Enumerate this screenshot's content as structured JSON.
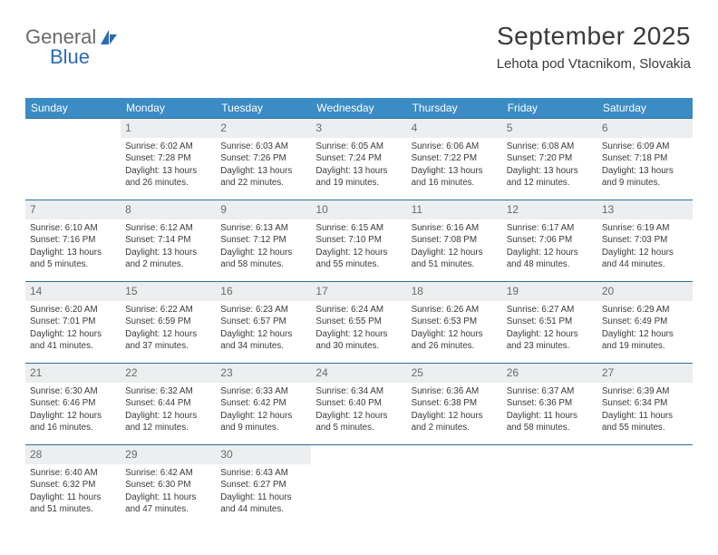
{
  "brand": {
    "part1": "General",
    "part2": "Blue"
  },
  "header": {
    "title": "September 2025",
    "subtitle": "Lehota pod Vtacnikom, Slovakia"
  },
  "layout": {
    "header_bg": "#3b8bc4",
    "header_fg": "#ffffff",
    "daynum_bg": "#eceeef",
    "row_border": "#2f6f9b",
    "text_color": "#3a3a3a"
  },
  "weekdays": [
    "Sunday",
    "Monday",
    "Tuesday",
    "Wednesday",
    "Thursday",
    "Friday",
    "Saturday"
  ],
  "weeks": [
    [
      {
        "n": "",
        "sr": "",
        "ss": "",
        "dl": ""
      },
      {
        "n": "1",
        "sr": "Sunrise: 6:02 AM",
        "ss": "Sunset: 7:28 PM",
        "dl": "Daylight: 13 hours and 26 minutes."
      },
      {
        "n": "2",
        "sr": "Sunrise: 6:03 AM",
        "ss": "Sunset: 7:26 PM",
        "dl": "Daylight: 13 hours and 22 minutes."
      },
      {
        "n": "3",
        "sr": "Sunrise: 6:05 AM",
        "ss": "Sunset: 7:24 PM",
        "dl": "Daylight: 13 hours and 19 minutes."
      },
      {
        "n": "4",
        "sr": "Sunrise: 6:06 AM",
        "ss": "Sunset: 7:22 PM",
        "dl": "Daylight: 13 hours and 16 minutes."
      },
      {
        "n": "5",
        "sr": "Sunrise: 6:08 AM",
        "ss": "Sunset: 7:20 PM",
        "dl": "Daylight: 13 hours and 12 minutes."
      },
      {
        "n": "6",
        "sr": "Sunrise: 6:09 AM",
        "ss": "Sunset: 7:18 PM",
        "dl": "Daylight: 13 hours and 9 minutes."
      }
    ],
    [
      {
        "n": "7",
        "sr": "Sunrise: 6:10 AM",
        "ss": "Sunset: 7:16 PM",
        "dl": "Daylight: 13 hours and 5 minutes."
      },
      {
        "n": "8",
        "sr": "Sunrise: 6:12 AM",
        "ss": "Sunset: 7:14 PM",
        "dl": "Daylight: 13 hours and 2 minutes."
      },
      {
        "n": "9",
        "sr": "Sunrise: 6:13 AM",
        "ss": "Sunset: 7:12 PM",
        "dl": "Daylight: 12 hours and 58 minutes."
      },
      {
        "n": "10",
        "sr": "Sunrise: 6:15 AM",
        "ss": "Sunset: 7:10 PM",
        "dl": "Daylight: 12 hours and 55 minutes."
      },
      {
        "n": "11",
        "sr": "Sunrise: 6:16 AM",
        "ss": "Sunset: 7:08 PM",
        "dl": "Daylight: 12 hours and 51 minutes."
      },
      {
        "n": "12",
        "sr": "Sunrise: 6:17 AM",
        "ss": "Sunset: 7:06 PM",
        "dl": "Daylight: 12 hours and 48 minutes."
      },
      {
        "n": "13",
        "sr": "Sunrise: 6:19 AM",
        "ss": "Sunset: 7:03 PM",
        "dl": "Daylight: 12 hours and 44 minutes."
      }
    ],
    [
      {
        "n": "14",
        "sr": "Sunrise: 6:20 AM",
        "ss": "Sunset: 7:01 PM",
        "dl": "Daylight: 12 hours and 41 minutes."
      },
      {
        "n": "15",
        "sr": "Sunrise: 6:22 AM",
        "ss": "Sunset: 6:59 PM",
        "dl": "Daylight: 12 hours and 37 minutes."
      },
      {
        "n": "16",
        "sr": "Sunrise: 6:23 AM",
        "ss": "Sunset: 6:57 PM",
        "dl": "Daylight: 12 hours and 34 minutes."
      },
      {
        "n": "17",
        "sr": "Sunrise: 6:24 AM",
        "ss": "Sunset: 6:55 PM",
        "dl": "Daylight: 12 hours and 30 minutes."
      },
      {
        "n": "18",
        "sr": "Sunrise: 6:26 AM",
        "ss": "Sunset: 6:53 PM",
        "dl": "Daylight: 12 hours and 26 minutes."
      },
      {
        "n": "19",
        "sr": "Sunrise: 6:27 AM",
        "ss": "Sunset: 6:51 PM",
        "dl": "Daylight: 12 hours and 23 minutes."
      },
      {
        "n": "20",
        "sr": "Sunrise: 6:29 AM",
        "ss": "Sunset: 6:49 PM",
        "dl": "Daylight: 12 hours and 19 minutes."
      }
    ],
    [
      {
        "n": "21",
        "sr": "Sunrise: 6:30 AM",
        "ss": "Sunset: 6:46 PM",
        "dl": "Daylight: 12 hours and 16 minutes."
      },
      {
        "n": "22",
        "sr": "Sunrise: 6:32 AM",
        "ss": "Sunset: 6:44 PM",
        "dl": "Daylight: 12 hours and 12 minutes."
      },
      {
        "n": "23",
        "sr": "Sunrise: 6:33 AM",
        "ss": "Sunset: 6:42 PM",
        "dl": "Daylight: 12 hours and 9 minutes."
      },
      {
        "n": "24",
        "sr": "Sunrise: 6:34 AM",
        "ss": "Sunset: 6:40 PM",
        "dl": "Daylight: 12 hours and 5 minutes."
      },
      {
        "n": "25",
        "sr": "Sunrise: 6:36 AM",
        "ss": "Sunset: 6:38 PM",
        "dl": "Daylight: 12 hours and 2 minutes."
      },
      {
        "n": "26",
        "sr": "Sunrise: 6:37 AM",
        "ss": "Sunset: 6:36 PM",
        "dl": "Daylight: 11 hours and 58 minutes."
      },
      {
        "n": "27",
        "sr": "Sunrise: 6:39 AM",
        "ss": "Sunset: 6:34 PM",
        "dl": "Daylight: 11 hours and 55 minutes."
      }
    ],
    [
      {
        "n": "28",
        "sr": "Sunrise: 6:40 AM",
        "ss": "Sunset: 6:32 PM",
        "dl": "Daylight: 11 hours and 51 minutes."
      },
      {
        "n": "29",
        "sr": "Sunrise: 6:42 AM",
        "ss": "Sunset: 6:30 PM",
        "dl": "Daylight: 11 hours and 47 minutes."
      },
      {
        "n": "30",
        "sr": "Sunrise: 6:43 AM",
        "ss": "Sunset: 6:27 PM",
        "dl": "Daylight: 11 hours and 44 minutes."
      },
      {
        "n": "",
        "sr": "",
        "ss": "",
        "dl": ""
      },
      {
        "n": "",
        "sr": "",
        "ss": "",
        "dl": ""
      },
      {
        "n": "",
        "sr": "",
        "ss": "",
        "dl": ""
      },
      {
        "n": "",
        "sr": "",
        "ss": "",
        "dl": ""
      }
    ]
  ]
}
